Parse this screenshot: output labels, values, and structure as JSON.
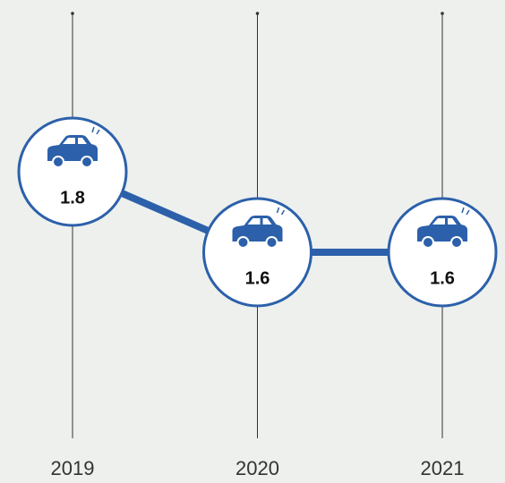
{
  "chart_data": {
    "type": "line",
    "categories": [
      "2019",
      "2020",
      "2021"
    ],
    "series": [
      {
        "values": [
          1.8,
          1.6,
          1.6
        ],
        "color": "#2c60aa"
      }
    ]
  }
}
